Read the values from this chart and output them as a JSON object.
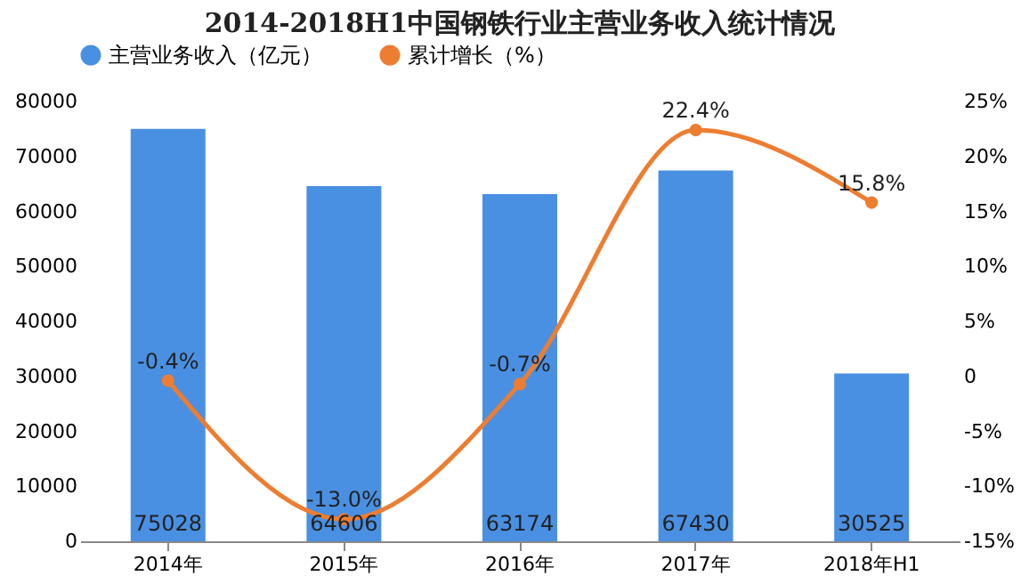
{
  "chart_data": {
    "type": "bar",
    "title": "2014-2018H1中国钢铁行业主营业务收入统计情况",
    "categories": [
      "2014年",
      "2015年",
      "2016年",
      "2017年",
      "2018年H1"
    ],
    "series": [
      {
        "name": "主营业务收入（亿元）",
        "color": "#4a90e2",
        "values": [
          75028,
          64606,
          63174,
          67430,
          30525
        ],
        "value_labels": [
          "75028",
          "64606",
          "63174",
          "67430",
          "30525"
        ]
      },
      {
        "name": "累计增长（%）",
        "type": "line",
        "axis": "y2",
        "color": "#ed7d31",
        "values": [
          -0.4,
          -13.0,
          -0.7,
          22.4,
          15.8
        ],
        "value_labels": [
          "-0.4%",
          "-13.0%",
          "-0.7%",
          "22.4%",
          "15.8%"
        ]
      }
    ],
    "ylim": [
      0,
      80000
    ],
    "yticks": [
      0,
      10000,
      20000,
      30000,
      40000,
      50000,
      60000,
      70000,
      80000
    ],
    "y2lim": [
      -15,
      25
    ],
    "y2ticks": [
      {
        "value": -15,
        "label": "-15%"
      },
      {
        "value": -10,
        "label": "-10%"
      },
      {
        "value": -5,
        "label": "-5%"
      },
      {
        "value": 0,
        "label": "0"
      },
      {
        "value": 5,
        "label": "5%"
      },
      {
        "value": 10,
        "label": "10%"
      },
      {
        "value": 15,
        "label": "15%"
      },
      {
        "value": 20,
        "label": "20%"
      },
      {
        "value": 25,
        "label": "25%"
      }
    ],
    "legend": "top",
    "marker": "circle",
    "line_style": "solid"
  }
}
